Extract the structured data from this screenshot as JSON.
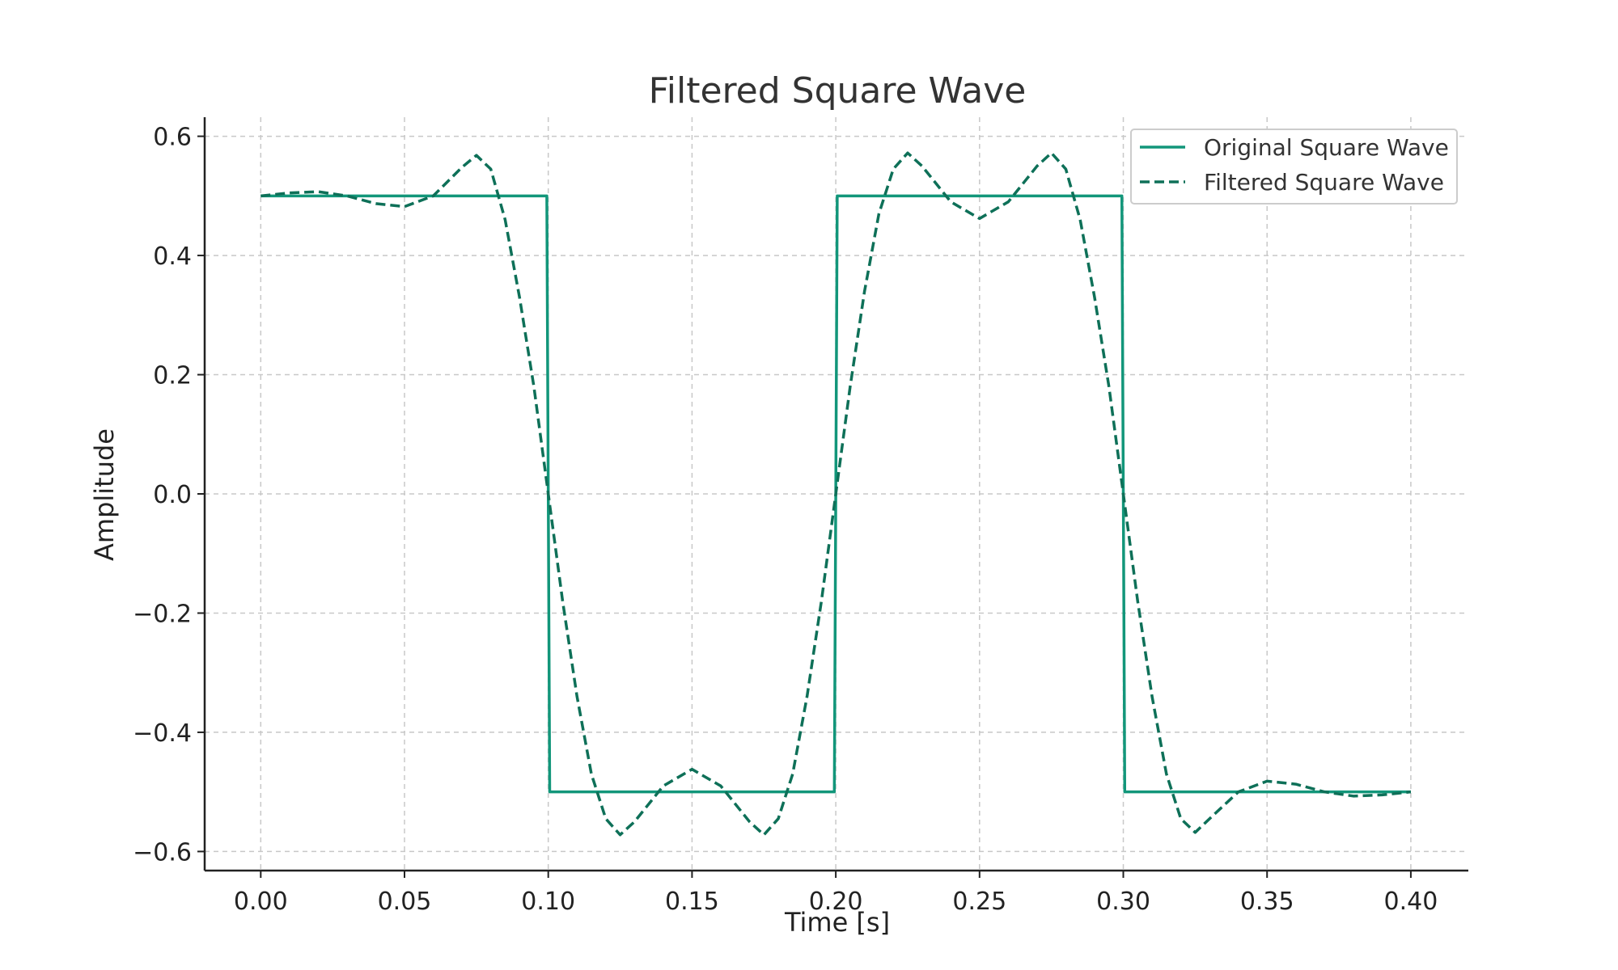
{
  "chart_data": {
    "type": "line",
    "title": "Filtered Square Wave",
    "xlabel": "Time [s]",
    "ylabel": "Amplitude",
    "xlim": [
      -0.0195,
      0.42
    ],
    "ylim": [
      -0.632,
      0.632
    ],
    "xticks": [
      0.0,
      0.05,
      0.1,
      0.15,
      0.2,
      0.25,
      0.3,
      0.35,
      0.4
    ],
    "xtick_labels": [
      "0.00",
      "0.05",
      "0.10",
      "0.15",
      "0.20",
      "0.25",
      "0.30",
      "0.35",
      "0.40"
    ],
    "yticks": [
      0.6,
      0.4,
      0.2,
      0.0,
      -0.2,
      -0.4,
      -0.6
    ],
    "ytick_labels": [
      "0.6",
      "0.4",
      "0.2",
      "0.0",
      "−0.2",
      "−0.4",
      "−0.6"
    ],
    "grid": true,
    "legend_position": "top-right",
    "series": [
      {
        "name": "Original Square Wave",
        "style": "solid",
        "color": "#12967a",
        "x": [
          0.0,
          0.0995,
          0.1005,
          0.1995,
          0.2005,
          0.2995,
          0.3005,
          0.4
        ],
        "y": [
          0.5,
          0.5,
          -0.5,
          -0.5,
          0.5,
          0.5,
          -0.5,
          -0.5
        ]
      },
      {
        "name": "Filtered Square Wave",
        "style": "dashed",
        "color": "#0e7058",
        "x": [
          0.0,
          0.01,
          0.02,
          0.03,
          0.04,
          0.05,
          0.06,
          0.07,
          0.075,
          0.08,
          0.085,
          0.09,
          0.095,
          0.1,
          0.105,
          0.11,
          0.115,
          0.12,
          0.125,
          0.13,
          0.14,
          0.15,
          0.16,
          0.17,
          0.175,
          0.18,
          0.185,
          0.19,
          0.195,
          0.2,
          0.205,
          0.21,
          0.215,
          0.22,
          0.225,
          0.23,
          0.24,
          0.25,
          0.26,
          0.27,
          0.275,
          0.28,
          0.285,
          0.29,
          0.295,
          0.3,
          0.305,
          0.31,
          0.315,
          0.32,
          0.325,
          0.33,
          0.34,
          0.35,
          0.36,
          0.37,
          0.38,
          0.39,
          0.4
        ],
        "y": [
          0.5,
          0.505,
          0.507,
          0.5,
          0.487,
          0.482,
          0.5,
          0.548,
          0.568,
          0.545,
          0.46,
          0.33,
          0.18,
          0.0,
          -0.18,
          -0.34,
          -0.47,
          -0.545,
          -0.572,
          -0.55,
          -0.49,
          -0.462,
          -0.49,
          -0.55,
          -0.572,
          -0.545,
          -0.47,
          -0.34,
          -0.18,
          0.0,
          0.18,
          0.34,
          0.47,
          0.545,
          0.572,
          0.55,
          0.49,
          0.462,
          0.49,
          0.55,
          0.572,
          0.545,
          0.46,
          0.33,
          0.18,
          0.0,
          -0.18,
          -0.34,
          -0.47,
          -0.545,
          -0.568,
          -0.545,
          -0.5,
          -0.482,
          -0.487,
          -0.5,
          -0.507,
          -0.505,
          -0.5
        ]
      }
    ]
  }
}
